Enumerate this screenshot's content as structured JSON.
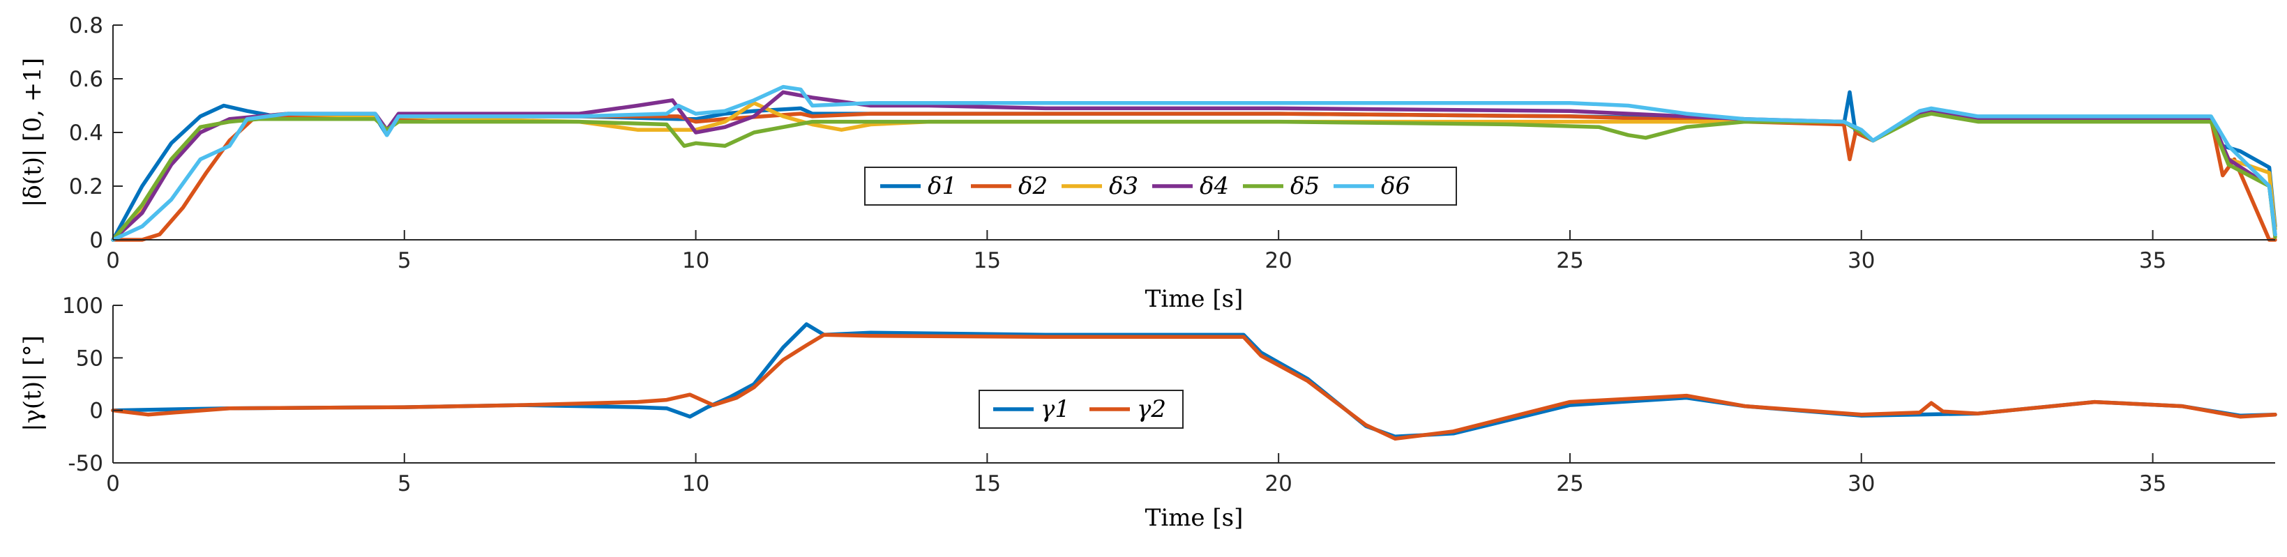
{
  "chart_data": [
    {
      "type": "line",
      "ylabel": "|δ(t)| [0, +1]",
      "xlabel": "Time [s]",
      "xlim": [
        0,
        37.1
      ],
      "ylim": [
        0,
        0.8
      ],
      "xticks": [
        "0",
        "5",
        "10",
        "15",
        "20",
        "25",
        "30",
        "35"
      ],
      "yticks": [
        "0",
        "0.2",
        "0.4",
        "0.6",
        "0.8"
      ],
      "legend_location": "bottom-center",
      "series": [
        {
          "name": "δ1",
          "color": "#0072BD",
          "x": [
            0,
            0.5,
            1,
            1.5,
            1.9,
            2.3,
            2.8,
            3.5,
            4.5,
            4.7,
            4.9,
            6,
            8,
            9.7,
            10,
            10.5,
            11,
            11.8,
            12,
            13,
            14,
            16,
            20,
            25,
            28,
            29.7,
            29.8,
            29.9,
            30.2,
            31,
            31.2,
            32,
            36,
            36.2,
            36.5,
            37,
            37.1
          ],
          "y": [
            0,
            0.2,
            0.36,
            0.46,
            0.5,
            0.48,
            0.46,
            0.46,
            0.46,
            0.39,
            0.46,
            0.46,
            0.46,
            0.45,
            0.45,
            0.47,
            0.48,
            0.49,
            0.47,
            0.47,
            0.47,
            0.47,
            0.47,
            0.46,
            0.45,
            0.43,
            0.55,
            0.4,
            0.37,
            0.47,
            0.48,
            0.45,
            0.45,
            0.35,
            0.33,
            0.27,
            0.05
          ]
        },
        {
          "name": "δ2",
          "color": "#D95319",
          "x": [
            0,
            0.5,
            0.8,
            1.2,
            1.6,
            2,
            2.4,
            3,
            4.5,
            4.7,
            4.9,
            6,
            8,
            9.7,
            10,
            10.5,
            11.8,
            12,
            13,
            14,
            16,
            20,
            25,
            28,
            29.7,
            29.8,
            29.9,
            30.2,
            31,
            31.2,
            32,
            36,
            36.2,
            36.4,
            36.7,
            37,
            37.1
          ],
          "y": [
            0,
            0,
            0.02,
            0.12,
            0.25,
            0.37,
            0.45,
            0.46,
            0.46,
            0.41,
            0.45,
            0.46,
            0.46,
            0.46,
            0.44,
            0.45,
            0.47,
            0.46,
            0.47,
            0.47,
            0.47,
            0.47,
            0.46,
            0.44,
            0.43,
            0.3,
            0.4,
            0.37,
            0.47,
            0.48,
            0.45,
            0.45,
            0.24,
            0.3,
            0.15,
            0,
            0
          ]
        },
        {
          "name": "δ3",
          "color": "#EDB120",
          "x": [
            0,
            0.5,
            1,
            1.5,
            2,
            2.5,
            3,
            4.5,
            4.7,
            4.9,
            6,
            8,
            9,
            10,
            10.5,
            11,
            11.5,
            12,
            12.5,
            13,
            14,
            16,
            20,
            25,
            28,
            29.7,
            30,
            30.2,
            31,
            31.2,
            32,
            36,
            36.3,
            36.6,
            37,
            37.1
          ],
          "y": [
            0,
            0.12,
            0.3,
            0.42,
            0.44,
            0.46,
            0.47,
            0.46,
            0.4,
            0.46,
            0.45,
            0.44,
            0.41,
            0.41,
            0.44,
            0.51,
            0.46,
            0.43,
            0.41,
            0.43,
            0.44,
            0.44,
            0.44,
            0.44,
            0.44,
            0.44,
            0.4,
            0.37,
            0.47,
            0.48,
            0.45,
            0.45,
            0.3,
            0.28,
            0.25,
            0.04
          ]
        },
        {
          "name": "δ4",
          "color": "#7E2F8E",
          "x": [
            0,
            0.5,
            1,
            1.5,
            2,
            2.5,
            3,
            4.5,
            4.7,
            4.9,
            6,
            8,
            9,
            9.6,
            10,
            10.5,
            11,
            11.5,
            12,
            13,
            14,
            16,
            20,
            25,
            28,
            29.7,
            30,
            30.2,
            31,
            31.2,
            32,
            36,
            36.3,
            37,
            37.1
          ],
          "y": [
            0,
            0.1,
            0.28,
            0.4,
            0.45,
            0.46,
            0.47,
            0.47,
            0.41,
            0.47,
            0.47,
            0.47,
            0.5,
            0.52,
            0.4,
            0.42,
            0.46,
            0.55,
            0.53,
            0.5,
            0.5,
            0.49,
            0.49,
            0.48,
            0.45,
            0.44,
            0.4,
            0.37,
            0.47,
            0.48,
            0.45,
            0.45,
            0.3,
            0.2,
            0.02
          ]
        },
        {
          "name": "δ5",
          "color": "#77AC30",
          "x": [
            0,
            0.5,
            1,
            1.5,
            2,
            2.5,
            3,
            4.5,
            4.7,
            4.9,
            6,
            8,
            9.5,
            9.8,
            10,
            10.5,
            11,
            12,
            13,
            14,
            16,
            20,
            24,
            25.5,
            26,
            26.3,
            27,
            28,
            29.7,
            30,
            30.2,
            31,
            31.2,
            32,
            36,
            36.3,
            37,
            37.1
          ],
          "y": [
            0,
            0.13,
            0.3,
            0.42,
            0.44,
            0.45,
            0.45,
            0.45,
            0.41,
            0.44,
            0.44,
            0.44,
            0.43,
            0.35,
            0.36,
            0.35,
            0.4,
            0.44,
            0.44,
            0.44,
            0.44,
            0.44,
            0.43,
            0.42,
            0.39,
            0.38,
            0.42,
            0.44,
            0.44,
            0.4,
            0.37,
            0.46,
            0.47,
            0.44,
            0.44,
            0.28,
            0.2,
            0.01
          ]
        },
        {
          "name": "δ6",
          "color": "#4DBEEE",
          "x": [
            0,
            0.5,
            1,
            1.5,
            2,
            2.3,
            3,
            4.5,
            4.7,
            4.9,
            6,
            8,
            9.5,
            9.7,
            10,
            10.5,
            11,
            11.5,
            11.8,
            12,
            13,
            14,
            16,
            20,
            25,
            26,
            27,
            28,
            29.7,
            30,
            30.2,
            31,
            31.2,
            32,
            36,
            36.3,
            37,
            37.1
          ],
          "y": [
            0,
            0.05,
            0.15,
            0.3,
            0.35,
            0.45,
            0.47,
            0.47,
            0.39,
            0.46,
            0.46,
            0.46,
            0.47,
            0.5,
            0.47,
            0.48,
            0.52,
            0.57,
            0.56,
            0.5,
            0.51,
            0.51,
            0.51,
            0.51,
            0.51,
            0.5,
            0.47,
            0.45,
            0.44,
            0.41,
            0.37,
            0.48,
            0.49,
            0.46,
            0.46,
            0.35,
            0.2,
            0.02
          ]
        }
      ]
    },
    {
      "type": "line",
      "ylabel": "|γ(t)| [°]",
      "xlabel": "Time [s]",
      "xlim": [
        0,
        37.1
      ],
      "ylim": [
        -50,
        100
      ],
      "xticks": [
        "0",
        "5",
        "10",
        "15",
        "20",
        "25",
        "30",
        "35"
      ],
      "yticks": [
        "-50",
        "0",
        "50",
        "100"
      ],
      "legend_location": "bottom-center",
      "series": [
        {
          "name": "γ1",
          "color": "#0072BD",
          "x": [
            0,
            2,
            5,
            7,
            9,
            9.5,
            9.9,
            10.2,
            10.6,
            11,
            11.5,
            11.9,
            12.2,
            13,
            16,
            19.4,
            19.7,
            20.5,
            21.5,
            22,
            23,
            25,
            27,
            28,
            30,
            32,
            34,
            35.5,
            36.5,
            37.1
          ],
          "y": [
            0,
            2,
            3,
            5,
            3,
            2,
            -6,
            3,
            13,
            25,
            60,
            82,
            72,
            74,
            72,
            72,
            55,
            30,
            -15,
            -25,
            -22,
            5,
            12,
            4,
            -5,
            -3,
            8,
            4,
            -5,
            -4
          ]
        },
        {
          "name": "γ2",
          "color": "#D95319",
          "x": [
            0,
            0.6,
            2,
            5,
            7,
            9,
            9.5,
            9.9,
            10.3,
            10.7,
            11,
            11.5,
            11.9,
            12.2,
            13,
            16,
            19.4,
            19.7,
            20.5,
            21.5,
            22,
            23,
            25,
            27,
            28,
            30,
            31,
            31.2,
            31.4,
            32,
            34,
            35.5,
            36.5,
            37.1
          ],
          "y": [
            0,
            -4,
            2,
            3,
            5,
            8,
            10,
            15,
            5,
            12,
            22,
            48,
            62,
            72,
            71,
            70,
            70,
            52,
            28,
            -14,
            -27,
            -20,
            8,
            14,
            4,
            -4,
            -2,
            7,
            -1,
            -3,
            8,
            4,
            -6,
            -4
          ]
        }
      ]
    }
  ]
}
